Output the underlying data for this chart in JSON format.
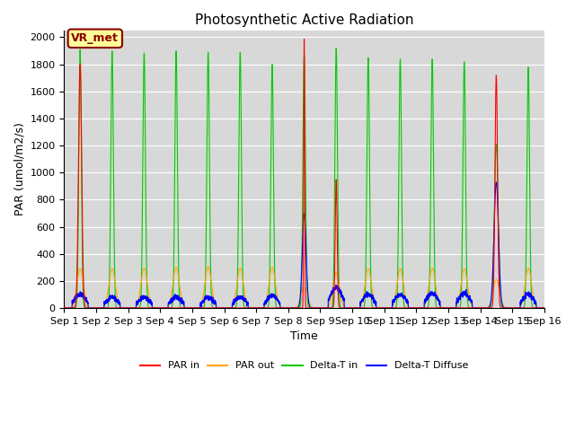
{
  "title": "Photosynthetic Active Radiation",
  "ylabel": "PAR (umol/m2/s)",
  "xlabel": "Time",
  "ylim": [
    0,
    2050
  ],
  "yticks": [
    0,
    200,
    400,
    600,
    800,
    1000,
    1200,
    1400,
    1600,
    1800,
    2000
  ],
  "plot_bg": "#d8d8d8",
  "fig_bg": "#ffffff",
  "legend_colors": [
    "#ff0000",
    "#ffa500",
    "#00cc00",
    "#0000ff"
  ],
  "legend_labels": [
    "PAR in",
    "PAR out",
    "Delta-T in",
    "Delta-T Diffuse"
  ],
  "label_box_text": "VR_met",
  "label_box_facecolor": "#ffff99",
  "label_box_edgecolor": "#8b0000",
  "label_text_color": "#8b0000",
  "title_fontsize": 11,
  "axis_label_fontsize": 9,
  "tick_fontsize": 8,
  "legend_fontsize": 8,
  "n_per_day": 288,
  "n_days": 15,
  "day_configs": [
    {
      "pi": 1800,
      "po": 290,
      "dt": 1910,
      "diff": 100,
      "dt_sigma": 0.04,
      "pi_sigma": 0.05
    },
    {
      "pi": 0,
      "po": 290,
      "dt": 1900,
      "diff": 80,
      "dt_sigma": 0.04,
      "pi_sigma": 0.05
    },
    {
      "pi": 0,
      "po": 295,
      "dt": 1885,
      "diff": 80,
      "dt_sigma": 0.04,
      "pi_sigma": 0.05
    },
    {
      "pi": 0,
      "po": 300,
      "dt": 1900,
      "diff": 80,
      "dt_sigma": 0.04,
      "pi_sigma": 0.05
    },
    {
      "pi": 0,
      "po": 305,
      "dt": 1890,
      "diff": 80,
      "dt_sigma": 0.04,
      "pi_sigma": 0.05
    },
    {
      "pi": 0,
      "po": 295,
      "dt": 1890,
      "diff": 80,
      "dt_sigma": 0.04,
      "pi_sigma": 0.05
    },
    {
      "pi": 0,
      "po": 300,
      "dt": 1800,
      "diff": 90,
      "dt_sigma": 0.04,
      "pi_sigma": 0.05
    },
    {
      "pi": 2000,
      "po": 150,
      "dt": 1870,
      "diff": 700,
      "dt_sigma": 0.04,
      "pi_sigma": 0.015
    },
    {
      "pi": 950,
      "po": 260,
      "dt": 1920,
      "diff": 150,
      "dt_sigma": 0.04,
      "pi_sigma": 0.03
    },
    {
      "pi": 0,
      "po": 290,
      "dt": 1850,
      "diff": 100,
      "dt_sigma": 0.04,
      "pi_sigma": 0.05
    },
    {
      "pi": 0,
      "po": 290,
      "dt": 1840,
      "diff": 100,
      "dt_sigma": 0.04,
      "pi_sigma": 0.05
    },
    {
      "pi": 0,
      "po": 295,
      "dt": 1840,
      "diff": 110,
      "dt_sigma": 0.04,
      "pi_sigma": 0.05
    },
    {
      "pi": 0,
      "po": 290,
      "dt": 1820,
      "diff": 110,
      "dt_sigma": 0.04,
      "pi_sigma": 0.05
    },
    {
      "pi": 1720,
      "po": 210,
      "dt": 1210,
      "diff": 930,
      "dt_sigma": 0.06,
      "pi_sigma": 0.04
    },
    {
      "pi": 0,
      "po": 295,
      "dt": 1780,
      "diff": 100,
      "dt_sigma": 0.04,
      "pi_sigma": 0.05
    }
  ]
}
